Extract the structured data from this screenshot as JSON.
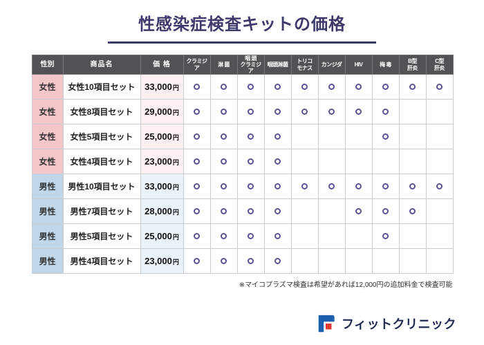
{
  "title": "性感染症検査キットの価格",
  "table": {
    "headers": {
      "gender": "性別",
      "product": "商品名",
      "price": "価 格",
      "tests": [
        "クラミジア",
        "淋 菌",
        "咽 頭\nクラミジア",
        "咽頭淋菌",
        "トリコ\nモナス",
        "カンジダ",
        "HIV",
        "梅 毒",
        "B型\n肝炎",
        "C型\n肝炎"
      ]
    },
    "rows": [
      {
        "gender": "女性",
        "type": "female",
        "product": "女性10項目セット",
        "price": "33,000",
        "unit": "円",
        "checks": [
          1,
          1,
          1,
          1,
          1,
          1,
          1,
          1,
          1,
          1
        ]
      },
      {
        "gender": "女性",
        "type": "female",
        "product": "女性8項目セット",
        "price": "29,000",
        "unit": "円",
        "checks": [
          1,
          1,
          1,
          1,
          1,
          1,
          1,
          1,
          0,
          0
        ]
      },
      {
        "gender": "女性",
        "type": "female",
        "product": "女性5項目セット",
        "price": "25,000",
        "unit": "円",
        "checks": [
          1,
          1,
          1,
          1,
          0,
          0,
          0,
          1,
          0,
          0
        ]
      },
      {
        "gender": "女性",
        "type": "female",
        "product": "女性4項目セット",
        "price": "23,000",
        "unit": "円",
        "checks": [
          1,
          1,
          1,
          1,
          0,
          0,
          0,
          0,
          0,
          0
        ]
      },
      {
        "gender": "男性",
        "type": "male",
        "product": "男性10項目セット",
        "price": "33,000",
        "unit": "円",
        "checks": [
          1,
          1,
          1,
          1,
          1,
          1,
          1,
          1,
          1,
          1
        ]
      },
      {
        "gender": "男性",
        "type": "male",
        "product": "男性7項目セット",
        "price": "28,000",
        "unit": "円",
        "checks": [
          1,
          1,
          1,
          1,
          0,
          0,
          1,
          1,
          1,
          0
        ]
      },
      {
        "gender": "男性",
        "type": "male",
        "product": "男性5項目セット",
        "price": "25,000",
        "unit": "円",
        "checks": [
          1,
          1,
          1,
          1,
          0,
          0,
          0,
          1,
          0,
          0
        ]
      },
      {
        "gender": "男性",
        "type": "male",
        "product": "男性4項目セット",
        "price": "23,000",
        "unit": "円",
        "checks": [
          1,
          1,
          1,
          1,
          0,
          0,
          0,
          0,
          0,
          0
        ]
      }
    ]
  },
  "footnote": "※マイコプラズマ検査は希望があれば12,000円の追加料金で検査可能",
  "logo": {
    "text": "フィットクリニック"
  },
  "colors": {
    "title": "#3c3a6b",
    "header_bg": "#525254",
    "female_accent": "#f3c6c9",
    "female_tint": "#fdf0f0",
    "male_accent": "#bfd7e9",
    "male_tint": "#eaf3fa",
    "circle": "#5a5292",
    "logo_blue": "#1c5fad",
    "logo_red": "#e23b33",
    "logo_text": "#222a52"
  }
}
